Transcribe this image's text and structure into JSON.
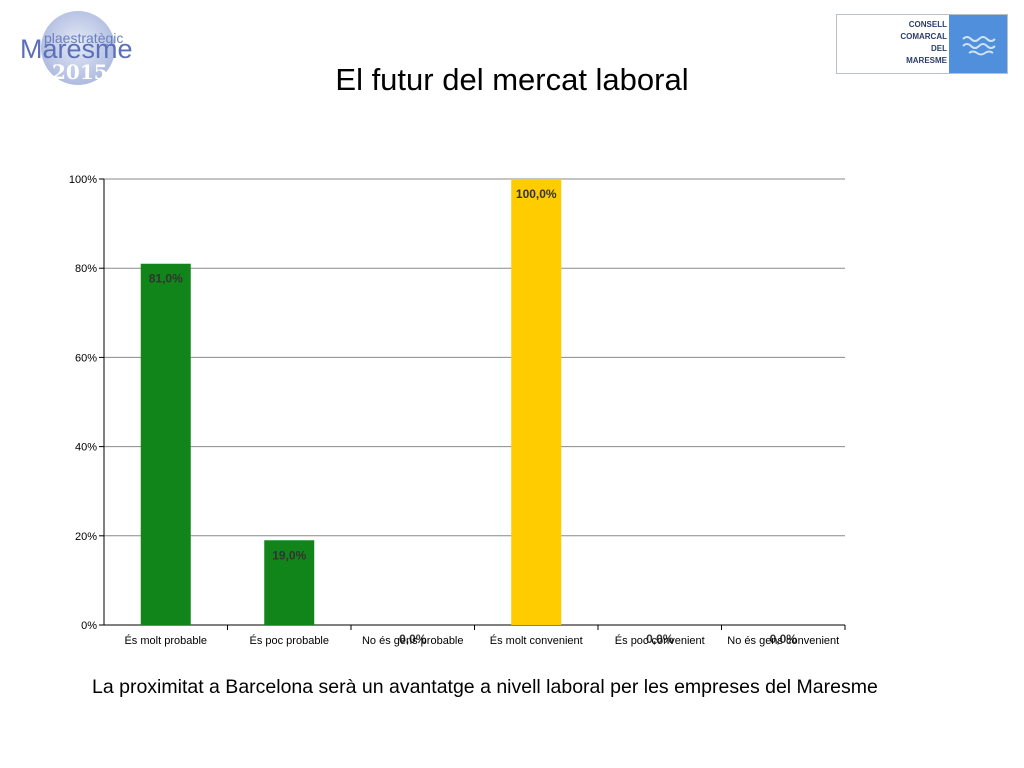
{
  "header": {
    "title": "El futur del mercat laboral",
    "logo_left": {
      "line1": "plaestratègic",
      "line2": "Maresme",
      "line3": "2015"
    },
    "logo_right": {
      "lines": [
        "CONSELL",
        "COMARCAL",
        "DEL",
        "MARESME"
      ]
    }
  },
  "chart_data": {
    "type": "bar",
    "categories": [
      "És molt probable",
      "És poc probable",
      "No és gens probable",
      "És molt convenient",
      "És poc convenient",
      "No és gens convenient"
    ],
    "values": [
      81.0,
      19.0,
      0.0,
      100.0,
      0.0,
      0.0
    ],
    "value_labels": [
      "81,0%",
      "19,0%",
      "0,0%",
      "100,0%",
      "0,0%",
      "0,0%"
    ],
    "bar_colors": [
      "#11851a",
      "#11851a",
      "#11851a",
      "#ffcc00",
      "#ffcc00",
      "#ffcc00"
    ],
    "ylim": [
      0,
      100
    ],
    "yticks": [
      0,
      20,
      40,
      60,
      80,
      100
    ],
    "ytick_labels": [
      "0%",
      "20%",
      "40%",
      "60%",
      "80%",
      "100%"
    ],
    "grid": true,
    "legend": "none"
  },
  "caption": "La proximitat a Barcelona serà un avantatge a nivell laboral per les empreses del Maresme"
}
